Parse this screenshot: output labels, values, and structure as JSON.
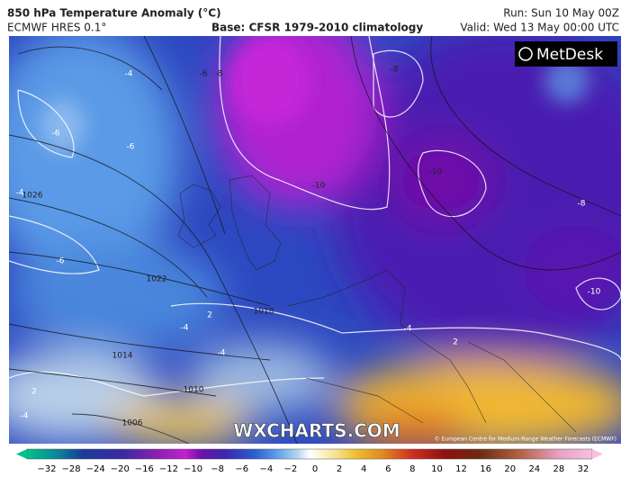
{
  "header": {
    "title": "850 hPa Temperature Anomaly (°C)",
    "model": "ECMWF HRES 0.1°",
    "base": "Base: CFSR 1979-2010 climatology",
    "run": "Run: Sun 10 May 00Z",
    "valid": "Valid: Wed 13 May 00:00 UTC"
  },
  "logo": "MetDesk",
  "watermark": "WXCHARTS.COM",
  "copyright": "© European Centre for Medium-Range Weather Forecasts (ECMWF)",
  "contour_labels": [
    "-4",
    "-6",
    "-6",
    "-4",
    "1026",
    "-6",
    "1022",
    "1018",
    "-4",
    "2",
    "1014",
    "-4",
    "1010",
    "1006",
    "2",
    "-4",
    "-6",
    "-8",
    "-8",
    "-10",
    "-10",
    "-8",
    "-10",
    "-4",
    "2"
  ],
  "colorbar": {
    "ticks": [
      "−32",
      "−28",
      "−24",
      "−20",
      "−16",
      "−12",
      "−10",
      "−8",
      "−6",
      "−4",
      "−2",
      "0",
      "2",
      "4",
      "6",
      "8",
      "10",
      "12",
      "16",
      "20",
      "24",
      "28",
      "32"
    ]
  }
}
